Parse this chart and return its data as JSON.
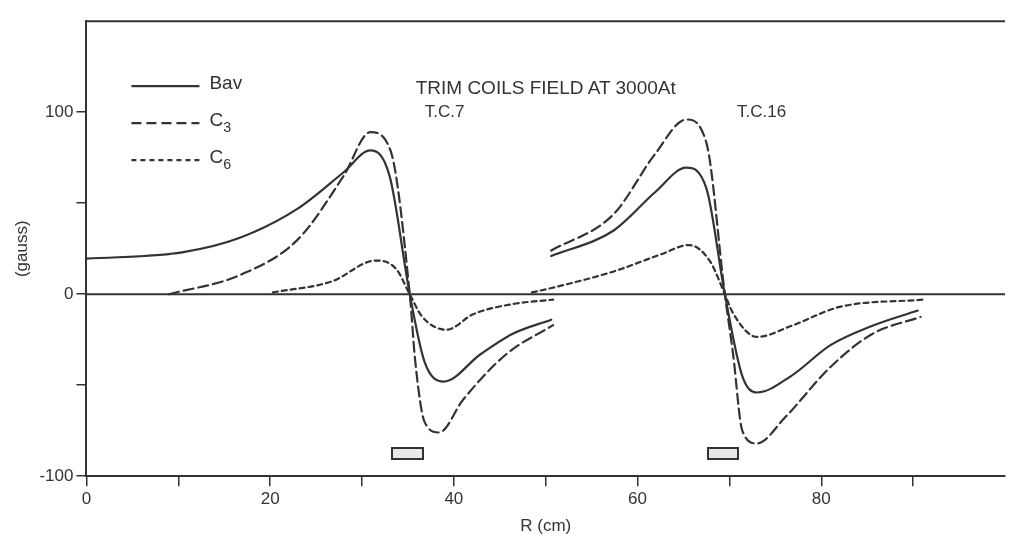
{
  "chart_data": {
    "type": "line",
    "title": "TRIM COILS FIELD AT 3000At",
    "xlabel": "R (cm)",
    "ylabel": "(gauss)",
    "xlim": [
      0,
      100
    ],
    "xticks": [
      0,
      {
        "value": 10,
        "label": null
      },
      20,
      {
        "value": 30,
        "label": null
      },
      40,
      {
        "value": 50,
        "label": null
      },
      60,
      {
        "value": 70,
        "label": null
      },
      80,
      {
        "value": 90,
        "label": null
      }
    ],
    "ylim": [
      -100,
      150
    ],
    "yticks": [
      -100,
      {
        "value": -50,
        "label": null
      },
      0,
      {
        "value": 50,
        "label": null
      },
      100
    ],
    "grid": false,
    "legend": "top left",
    "marker": "none",
    "ref_lines": [
      {
        "axis": "y",
        "value": 0
      }
    ],
    "annotations": [
      "T.C.7",
      "T.C.16"
    ],
    "series": [
      {
        "name": "Bav",
        "color": "#333333",
        "line_style": "solid",
        "x": [
          0,
          10.4,
          16.7,
          23,
          28,
          30.9,
          33,
          35.2,
          36.8,
          38.9,
          42.9,
          46.3,
          50.6
        ],
        "values": [
          19.5,
          23,
          31,
          47,
          67,
          79,
          65,
          0,
          -37,
          -48,
          -33,
          -22,
          -14
        ]
      },
      {
        "name": "C$_{3}$",
        "color": "#333333",
        "line_style": "dashed",
        "x": [
          9,
          16.7,
          23,
          28,
          30.9,
          33.1,
          35.2,
          35.8,
          36.8,
          38.4,
          41,
          45.7,
          50.8
        ],
        "values": [
          0,
          10.5,
          30,
          65,
          89,
          79,
          0,
          -37,
          -70,
          -76,
          -58,
          -33,
          -17
        ]
      },
      {
        "name": "C$_{6}$",
        "color": "#333333",
        "line_style": "dotted",
        "x": [
          20.3,
          26.7,
          31.5,
          33.7,
          35.2,
          36.5,
          39.2,
          42.1,
          46.3,
          50.8
        ],
        "values": [
          1,
          7,
          18.5,
          14,
          0,
          -12,
          -19.5,
          -11,
          -5.5,
          -3
        ]
      },
      {
        "color": "#333333",
        "line_style": "solid",
        "x": [
          50.6,
          57.4,
          61.9,
          65.3,
          67.5,
          69.5,
          71.4,
          73,
          76.7,
          81,
          85.5,
          90.5
        ],
        "values": [
          21,
          35,
          56,
          69.5,
          58,
          0,
          -45,
          -54,
          -45,
          -28,
          -17.5,
          -9
        ]
      },
      {
        "color": "#333333",
        "line_style": "dashed",
        "x": [
          50.6,
          57.4,
          61.9,
          65.3,
          67.5,
          69.5,
          70.4,
          71.4,
          73,
          76,
          81,
          85.5,
          90.8
        ],
        "values": [
          24,
          44,
          77,
          96,
          83,
          0,
          -33,
          -75,
          -82,
          -68,
          -40,
          -22,
          -12.5
        ]
      },
      {
        "color": "#333333",
        "line_style": "dotted",
        "x": [
          48.5,
          50.3,
          57.4,
          62.6,
          65.6,
          67.9,
          69.5,
          70.4,
          73,
          76.7,
          82,
          91
        ],
        "values": [
          1,
          3,
          12.5,
          22,
          27,
          18,
          0,
          -10.5,
          -23.5,
          -17.5,
          -7,
          -3
        ]
      }
    ]
  }
}
